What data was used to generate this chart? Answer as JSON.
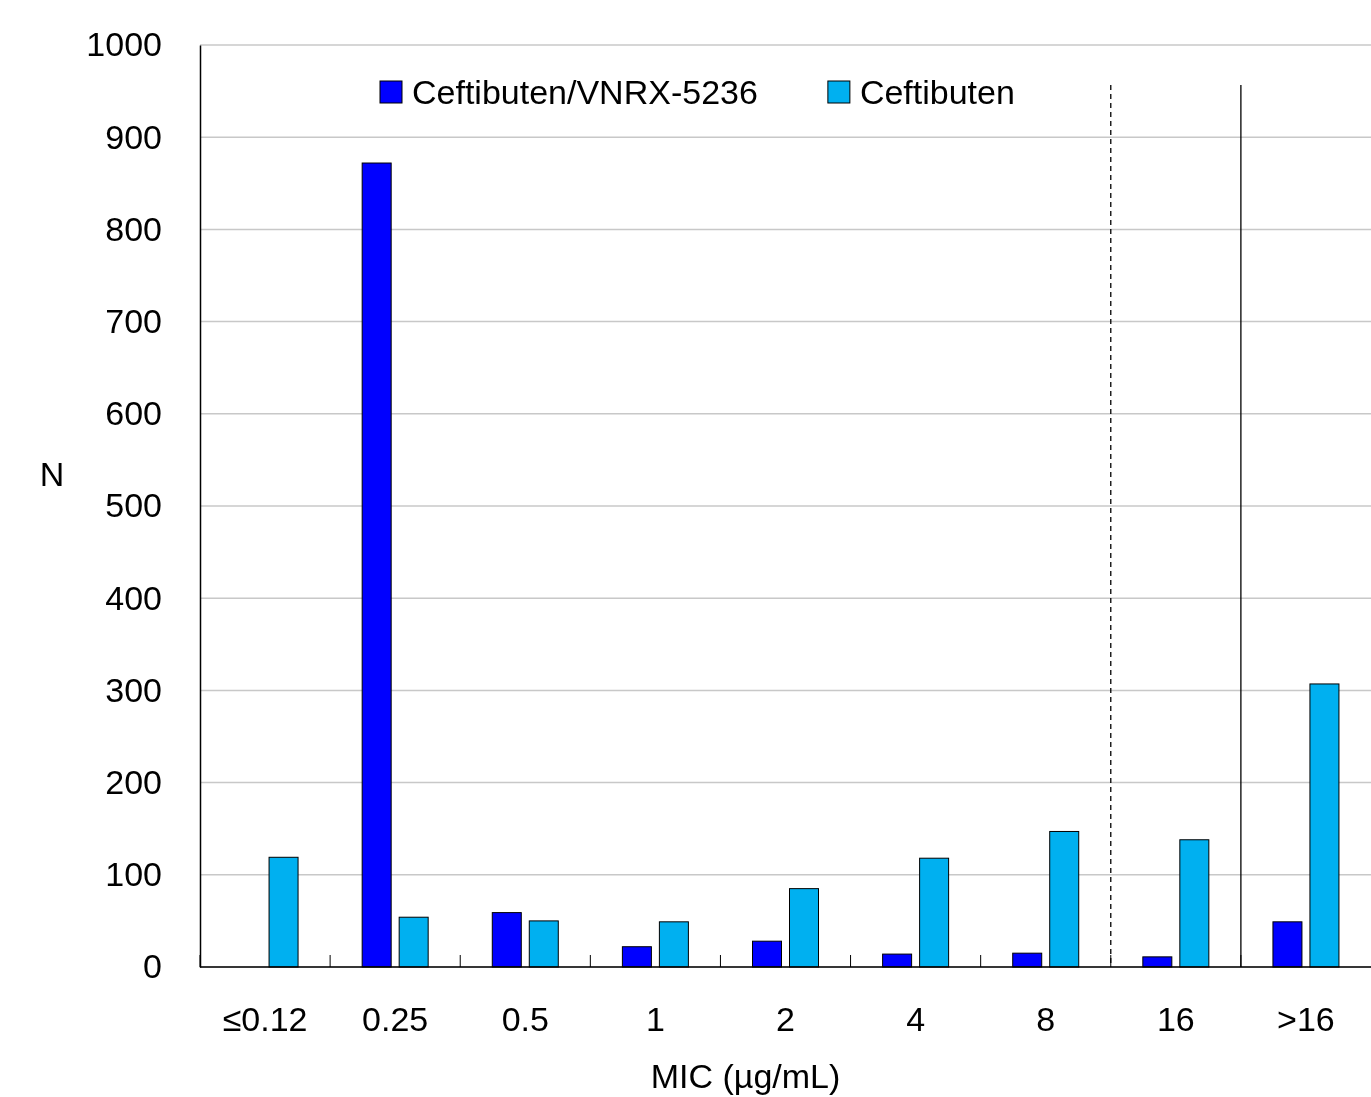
{
  "chart_data": {
    "type": "bar",
    "xlabel": "MIC (µg/mL)",
    "ylabel": "N",
    "categories": [
      "≤0.12",
      "0.25",
      "0.5",
      "1",
      "2",
      "4",
      "8",
      "16",
      ">16"
    ],
    "series": [
      {
        "name": "Ceftibuten/VNRX-5236",
        "color": "#0000ff",
        "values": [
          0,
          872,
          59,
          22,
          28,
          14,
          15,
          11,
          49
        ]
      },
      {
        "name": "Ceftibuten",
        "color": "#00b0f0",
        "values": [
          119,
          54,
          50,
          49,
          85,
          118,
          147,
          138,
          307
        ]
      }
    ],
    "ylim": [
      0,
      1000
    ],
    "yticks": [
      0,
      100,
      200,
      300,
      400,
      500,
      600,
      700,
      800,
      900,
      1000
    ],
    "grid": "y",
    "legend": "top",
    "ref_lines": [
      {
        "axis": "x",
        "value": "16",
        "line_style": "dashed",
        "color": "#000000"
      },
      {
        "axis": "x",
        "value": ">16",
        "line_style": "solid",
        "color": "#000000"
      }
    ]
  }
}
